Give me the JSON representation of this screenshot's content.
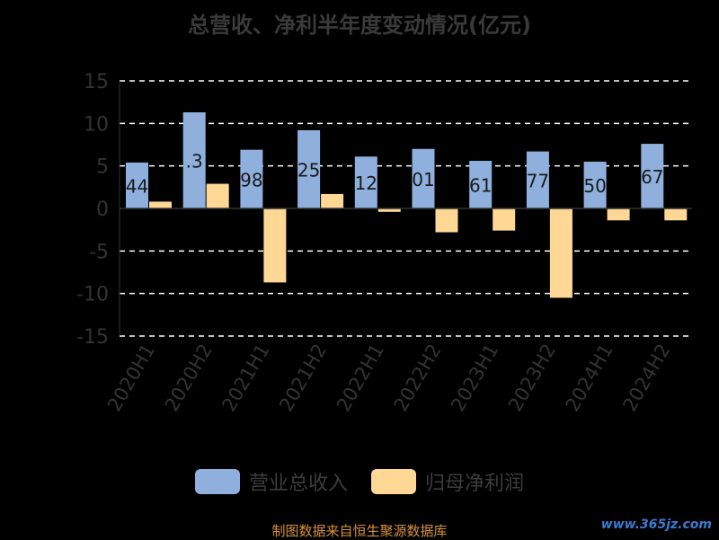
{
  "title": "总营收、净利半年度变动情况(亿元)",
  "source": "制图数据来自恒生聚源数据库",
  "watermark": "www.365jz.com",
  "colors": {
    "revenue": "#8fb0dd",
    "profit": "#ffd896",
    "axis": "#333333",
    "grid": "#ffffff"
  },
  "chart_data": {
    "type": "bar",
    "categories": [
      "2020H1",
      "2020H2",
      "2021H1",
      "2021H2",
      "2022H1",
      "2022H2",
      "2023H1",
      "2023H2",
      "2024H1",
      "2024H2"
    ],
    "ylim": [
      -15,
      15
    ],
    "yticks": [
      15,
      10,
      5,
      0,
      -5,
      -10,
      -15
    ],
    "grid": true,
    "legend_position": "bottom",
    "series": [
      {
        "name": "营业总收入",
        "values": [
          5.4,
          11.3,
          6.9,
          9.2,
          6.1,
          7.0,
          5.6,
          6.7,
          5.5,
          7.6
        ],
        "labels": [
          "44",
          ".3",
          "98",
          "25",
          "12",
          "01",
          "61",
          "77",
          "50",
          "67"
        ]
      },
      {
        "name": "归母净利润",
        "values": [
          0.8,
          2.9,
          -8.7,
          1.7,
          -0.4,
          -2.8,
          -2.6,
          -10.5,
          -1.4,
          -1.4
        ]
      }
    ]
  }
}
